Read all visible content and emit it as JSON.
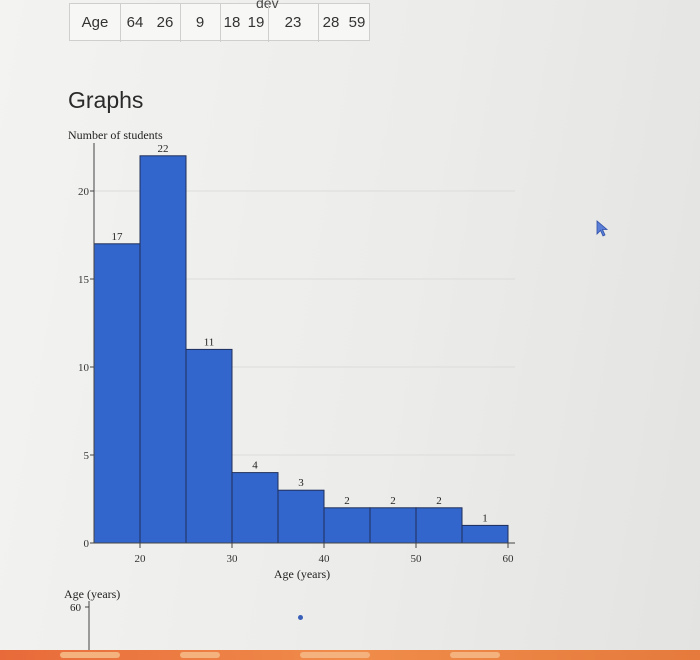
{
  "table": {
    "top_label": "dev",
    "row_label": "Age",
    "cells": [
      "64",
      "26",
      "9",
      "18",
      "19",
      "23",
      "28",
      "59"
    ]
  },
  "section": {
    "heading": "Graphs"
  },
  "chart_data": {
    "type": "bar",
    "ylabel": "Number of students",
    "xlabel": "Age (years)",
    "x_tick_labels": [
      "20",
      "30",
      "40",
      "50",
      "60"
    ],
    "y_ticks": [
      0,
      5,
      10,
      15,
      20
    ],
    "ylim": [
      0,
      22
    ],
    "xlim": [
      15,
      60
    ],
    "bins": [
      {
        "start": 15,
        "end": 20,
        "value": 17
      },
      {
        "start": 20,
        "end": 25,
        "value": 22
      },
      {
        "start": 25,
        "end": 30,
        "value": 11
      },
      {
        "start": 30,
        "end": 35,
        "value": 4
      },
      {
        "start": 35,
        "end": 40,
        "value": 3
      },
      {
        "start": 40,
        "end": 45,
        "value": 2
      },
      {
        "start": 45,
        "end": 50,
        "value": 2
      },
      {
        "start": 50,
        "end": 55,
        "value": 2
      },
      {
        "start": 55,
        "end": 60,
        "value": 1
      }
    ],
    "grid": true,
    "bar_color": "#3366cc"
  },
  "second_chart": {
    "ylabel": "Age (years)",
    "tick_label": "60"
  }
}
